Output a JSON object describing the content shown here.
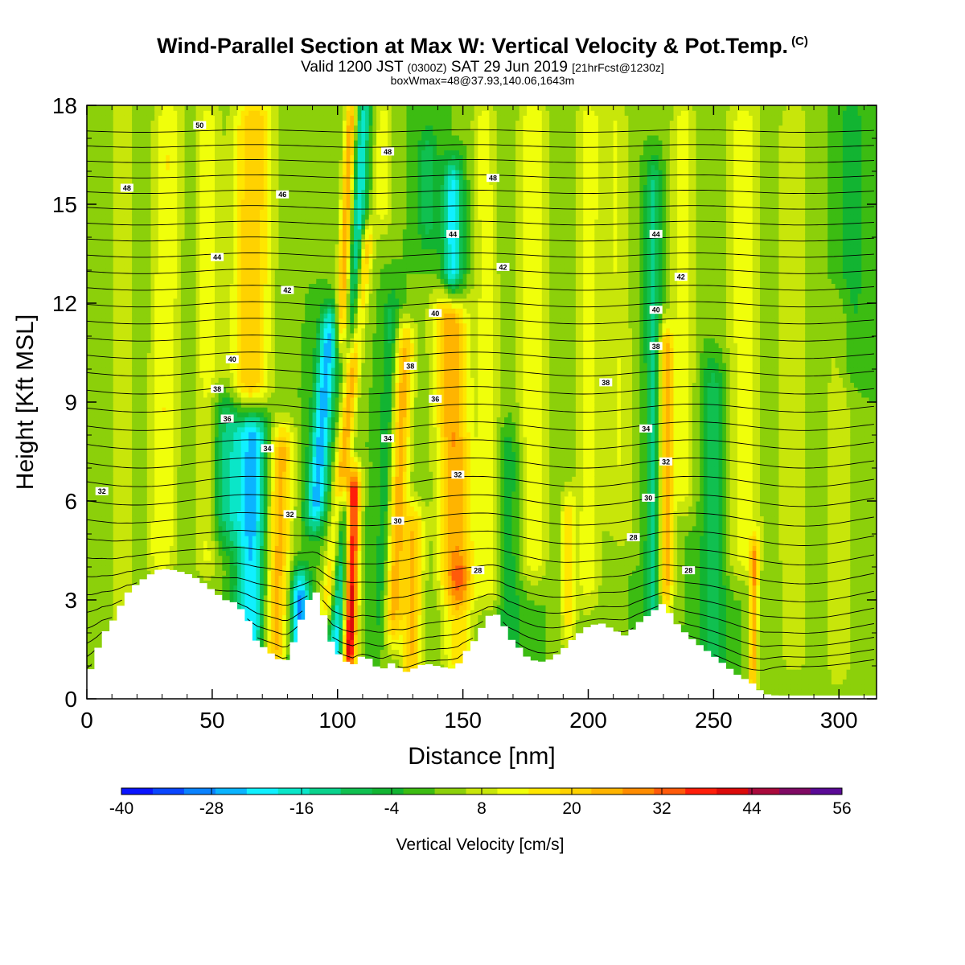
{
  "chart_data": {
    "type": "heatmap",
    "title": "Wind-Parallel Section at Max W: Vertical Velocity & Pot.Temp.",
    "title_badge": "(C)",
    "subtitle": {
      "part1": "Valid 1200 JST",
      "part2": "(0300Z)",
      "part3": "SAT 29 Jun 2019",
      "part4": "[21hrFcst@1230z]"
    },
    "subtitle2": "boxWmax=48@37.93,140.06,1643m",
    "xlabel": "Distance [nm]",
    "ylabel": "Height [Kft MSL]",
    "xlim": [
      0,
      315
    ],
    "ylim": [
      0,
      18
    ],
    "xticks": [
      "0",
      "50",
      "100",
      "150",
      "200",
      "250",
      "300"
    ],
    "yticks": [
      "0",
      "3",
      "6",
      "9",
      "12",
      "15",
      "18"
    ],
    "colorbar": {
      "label": "Vertical Velocity [cm/s]",
      "min": -40,
      "max": 56,
      "step": 4,
      "tick_labels": [
        "-40",
        "-28",
        "-16",
        "-4",
        "8",
        "20",
        "32",
        "44",
        "56"
      ],
      "colors": [
        "#0a14ff",
        "#0a46ff",
        "#0a82ff",
        "#0ab4ff",
        "#10f0ff",
        "#0ae6c8",
        "#0ad28c",
        "#10c050",
        "#12b432",
        "#3cbc12",
        "#8cd00a",
        "#c8e60a",
        "#f0ff0a",
        "#ffe600",
        "#ffd200",
        "#ffb400",
        "#ff8c00",
        "#ff5a0a",
        "#ff1e0a",
        "#dc0a0a",
        "#aa0a3c",
        "#800a64",
        "#5a0a96"
      ]
    },
    "background_w": 0,
    "terrain": {
      "x": [
        0,
        3,
        6,
        8,
        10,
        12,
        14,
        16,
        18,
        20,
        22,
        24,
        26,
        28,
        30,
        35,
        40,
        45,
        50,
        55,
        60,
        65,
        67,
        70,
        73,
        75,
        78,
        80,
        82,
        85,
        87,
        90,
        92,
        95,
        98,
        100,
        102,
        104,
        106,
        108,
        110,
        113,
        115,
        118,
        120,
        122,
        125,
        127,
        130,
        133,
        135,
        138,
        140,
        145,
        148,
        150,
        155,
        160,
        163,
        166,
        168,
        172,
        175,
        180,
        185,
        190,
        195,
        200,
        205,
        210,
        215,
        220,
        225,
        230,
        235,
        240,
        245,
        250,
        255,
        260,
        265,
        268,
        270,
        275,
        280,
        300,
        315
      ],
      "h": [
        0.6,
        1.2,
        1.9,
        2.1,
        2.3,
        2.6,
        2.9,
        3.2,
        3.3,
        3.5,
        3.6,
        3.7,
        3.8,
        3.9,
        3.95,
        3.9,
        3.8,
        3.6,
        3.3,
        3.0,
        2.9,
        2.3,
        1.8,
        1.6,
        1.4,
        1.3,
        1.1,
        1.2,
        1.6,
        2.3,
        2.7,
        3.3,
        3.2,
        2.4,
        1.6,
        1.4,
        1.2,
        1.1,
        1.0,
        1.2,
        1.3,
        1.2,
        1.0,
        0.9,
        1.0,
        1.1,
        0.9,
        0.8,
        0.9,
        1.0,
        1.1,
        1.0,
        1.0,
        0.9,
        1.0,
        1.3,
        1.8,
        2.5,
        2.6,
        2.3,
        1.9,
        1.6,
        1.3,
        1.1,
        1.2,
        1.5,
        1.9,
        2.2,
        2.3,
        2.1,
        1.9,
        2.3,
        2.6,
        2.9,
        2.3,
        1.9,
        1.6,
        1.3,
        1.0,
        0.7,
        0.5,
        0.3,
        0.15,
        0.1,
        0.1,
        0.1,
        0.1
      ]
    },
    "w_features": [
      {
        "x": 100,
        "h": 1.0,
        "z0": 0.5,
        "z1": 6.0,
        "tilt": 8,
        "sx": 5,
        "amp": -26
      },
      {
        "x": 104.5,
        "h": 1.5,
        "z0": 1.0,
        "z1": 6.5,
        "tilt": 4,
        "sx": 3,
        "amp": 52
      },
      {
        "x": 97,
        "h": 3.5,
        "z0": 2.5,
        "z1": 14,
        "tilt": 14,
        "sx": 3,
        "amp": 22
      },
      {
        "x": 92,
        "h": 6.5,
        "z0": 5.5,
        "z1": 11.5,
        "tilt": 10,
        "sx": 4,
        "amp": -26
      },
      {
        "x": 102,
        "h": 12,
        "z0": 11,
        "z1": 18,
        "tilt": 6,
        "sx": 2.5,
        "amp": 24
      },
      {
        "x": 108,
        "h": 14,
        "z0": 11,
        "z1": 18,
        "tilt": 6,
        "sx": 3,
        "amp": -20
      },
      {
        "x": 85,
        "h": 1.5,
        "z0": 0.5,
        "z1": 3.5,
        "tilt": 0,
        "sx": 4,
        "amp": -30
      },
      {
        "x": 76,
        "h": 3.5,
        "z0": 1,
        "z1": 8,
        "tilt": 4,
        "sx": 5,
        "amp": 22
      },
      {
        "x": 66,
        "h": 5.8,
        "z0": 1,
        "z1": 8.5,
        "tilt": 2,
        "sx": 6,
        "amp": -24
      },
      {
        "x": 56,
        "h": 7.0,
        "z0": 5,
        "z1": 9,
        "tilt": 0,
        "sx": 7,
        "amp": -14
      },
      {
        "x": 66,
        "h": 15,
        "z0": 9,
        "z1": 18,
        "tilt": 2,
        "sx": 8,
        "amp": 20
      },
      {
        "x": 48,
        "h": 14,
        "z0": 4,
        "z1": 18,
        "tilt": 0,
        "sx": 5,
        "amp": 10
      },
      {
        "x": 32,
        "h": 15,
        "z0": 4,
        "z1": 18,
        "tilt": 2,
        "sx": 6,
        "amp": 12
      },
      {
        "x": 14,
        "h": 10,
        "z0": 1,
        "z1": 18,
        "tilt": 0,
        "sx": 5,
        "amp": 8
      },
      {
        "x": 124,
        "h": 6,
        "z0": 2,
        "z1": 11,
        "tilt": 6,
        "sx": 4,
        "amp": 22
      },
      {
        "x": 130,
        "h": 3,
        "z0": 0.5,
        "z1": 5.5,
        "tilt": 3,
        "sx": 4,
        "amp": 20
      },
      {
        "x": 146,
        "h": 8.5,
        "z0": 3.5,
        "z1": 12,
        "tilt": -4,
        "sx": 7,
        "amp": 24
      },
      {
        "x": 148,
        "h": 2.3,
        "z0": 1,
        "z1": 3.5,
        "tilt": 0,
        "sx": 6,
        "amp": 16
      },
      {
        "x": 146,
        "h": 14,
        "z0": 12.5,
        "z1": 16,
        "tilt": 0,
        "sx": 4,
        "amp": -22
      },
      {
        "x": 136,
        "h": 15.5,
        "z0": 14,
        "z1": 17,
        "tilt": 0,
        "sx": 4,
        "amp": -10
      },
      {
        "x": 118,
        "h": 16,
        "z0": 14.5,
        "z1": 18,
        "tilt": 0,
        "sx": 4,
        "amp": 10
      },
      {
        "x": 120,
        "h": 8,
        "z0": 2,
        "z1": 12,
        "tilt": 4,
        "sx": 3,
        "amp": -10
      },
      {
        "x": 160,
        "h": 10,
        "z0": 3,
        "z1": 18,
        "tilt": -2,
        "sx": 5,
        "amp": 10
      },
      {
        "x": 178,
        "h": 11,
        "z0": 4,
        "z1": 18,
        "tilt": 0,
        "sx": 6,
        "amp": 12
      },
      {
        "x": 168,
        "h": 4,
        "z0": 1,
        "z1": 8,
        "tilt": 0,
        "sx": 5,
        "amp": -8
      },
      {
        "x": 192,
        "h": 4,
        "z0": 2,
        "z1": 6,
        "tilt": 0,
        "sx": 3,
        "amp": 14
      },
      {
        "x": 200,
        "h": 11,
        "z0": 3,
        "z1": 18,
        "tilt": 0,
        "sx": 5,
        "amp": 10
      },
      {
        "x": 212,
        "h": 10,
        "z0": 5,
        "z1": 18,
        "tilt": -2,
        "sx": 6,
        "amp": 8
      },
      {
        "x": 226,
        "h": 9,
        "z0": 2,
        "z1": 16,
        "tilt": 0,
        "sx": 3,
        "amp": -14
      },
      {
        "x": 231,
        "h": 7,
        "z0": 3,
        "z1": 11,
        "tilt": 0,
        "sx": 3,
        "amp": 22
      },
      {
        "x": 238,
        "h": 13,
        "z0": 6,
        "z1": 18,
        "tilt": 0,
        "sx": 5,
        "amp": 10
      },
      {
        "x": 250,
        "h": 5,
        "z0": 1,
        "z1": 10,
        "tilt": 0,
        "sx": 5,
        "amp": -10
      },
      {
        "x": 262,
        "h": 11,
        "z0": 4,
        "z1": 18,
        "tilt": 0,
        "sx": 7,
        "amp": 10
      },
      {
        "x": 266,
        "h": 2.5,
        "z0": 0.3,
        "z1": 4.5,
        "tilt": 2,
        "sx": 1.8,
        "amp": 22
      },
      {
        "x": 282,
        "h": 9,
        "z0": 1,
        "z1": 18,
        "tilt": 0,
        "sx": 8,
        "amp": 6
      },
      {
        "x": 300,
        "h": 6,
        "z0": 0.5,
        "z1": 12,
        "tilt": 0,
        "sx": 6,
        "amp": 6
      },
      {
        "x": 305,
        "h": 14,
        "z0": 10,
        "z1": 18,
        "tilt": 0,
        "sx": 6,
        "amp": -6
      }
    ],
    "theta_labels": [
      {
        "x": 45,
        "z": 17.4,
        "text": "50"
      },
      {
        "x": 16,
        "z": 15.5,
        "text": "48"
      },
      {
        "x": 120,
        "z": 16.6,
        "text": "48"
      },
      {
        "x": 162,
        "z": 15.8,
        "text": "48"
      },
      {
        "x": 78,
        "z": 15.3,
        "text": "46"
      },
      {
        "x": 146,
        "z": 14.1,
        "text": "44"
      },
      {
        "x": 52,
        "z": 13.4,
        "text": "44"
      },
      {
        "x": 227,
        "z": 14.1,
        "text": "44"
      },
      {
        "x": 166,
        "z": 13.1,
        "text": "42"
      },
      {
        "x": 80,
        "z": 12.4,
        "text": "42"
      },
      {
        "x": 237,
        "z": 12.8,
        "text": "42"
      },
      {
        "x": 139,
        "z": 11.7,
        "text": "40"
      },
      {
        "x": 58,
        "z": 10.3,
        "text": "40"
      },
      {
        "x": 227,
        "z": 11.8,
        "text": "40"
      },
      {
        "x": 129,
        "z": 10.1,
        "text": "38"
      },
      {
        "x": 52,
        "z": 9.4,
        "text": "38"
      },
      {
        "x": 227,
        "z": 10.7,
        "text": "38"
      },
      {
        "x": 207,
        "z": 9.6,
        "text": "38"
      },
      {
        "x": 139,
        "z": 9.1,
        "text": "36"
      },
      {
        "x": 56,
        "z": 8.5,
        "text": "36"
      },
      {
        "x": 120,
        "z": 7.9,
        "text": "34"
      },
      {
        "x": 72,
        "z": 7.6,
        "text": "34"
      },
      {
        "x": 223,
        "z": 8.2,
        "text": "34"
      },
      {
        "x": 148,
        "z": 6.8,
        "text": "32"
      },
      {
        "x": 6,
        "z": 6.3,
        "text": "32"
      },
      {
        "x": 81,
        "z": 5.6,
        "text": "32"
      },
      {
        "x": 231,
        "z": 7.2,
        "text": "32"
      },
      {
        "x": 124,
        "z": 5.4,
        "text": "30"
      },
      {
        "x": 224,
        "z": 6.1,
        "text": "30"
      },
      {
        "x": 156,
        "z": 3.9,
        "text": "28"
      },
      {
        "x": 218,
        "z": 4.9,
        "text": "28"
      },
      {
        "x": 240,
        "z": 3.9,
        "text": "28"
      }
    ]
  }
}
